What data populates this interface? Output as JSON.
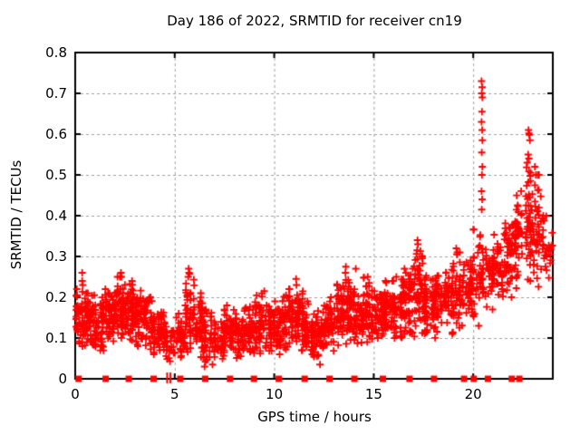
{
  "chart_data": {
    "type": "scatter",
    "title": "Day 186 of 2022, SRMTID for receiver cn19",
    "xlabel": "GPS time / hours",
    "ylabel": "SRMTID / TECUs",
    "xlim": [
      0,
      24
    ],
    "ylim": [
      0,
      0.8
    ],
    "xticks": [
      0,
      5,
      10,
      15,
      20
    ],
    "xtick_labels": [
      "0",
      "5",
      "10",
      "15",
      "20"
    ],
    "yticks": [
      0,
      0.1,
      0.2,
      0.3,
      0.4,
      0.5,
      0.6,
      0.7,
      0.8
    ],
    "ytick_labels": [
      "0",
      "0.1",
      "0.2",
      "0.3",
      "0.4",
      "0.5",
      "0.6",
      "0.7",
      "0.8"
    ],
    "grid": {
      "show": true,
      "style": "dashed",
      "color": "#a0a0a0",
      "x_at": [
        5,
        10,
        15,
        20
      ],
      "y_at": [
        0.1,
        0.2,
        0.3,
        0.4,
        0.5,
        0.6,
        0.7
      ]
    },
    "marker": {
      "glyph": "plus",
      "color": "#ff0000",
      "size": 7,
      "stroke": 1.8
    },
    "axis_color": "#000000",
    "background": "#ffffff",
    "legend": {
      "show": false
    },
    "series": [
      {
        "name": "SRMTID",
        "comment": "dense scatter of + markers; envelope bins are [hour_mid, y_min, y_max, approx_point_count per 0.5h bin] read from the plot",
        "envelope_bins": [
          [
            0.25,
            0.08,
            0.22,
            50
          ],
          [
            0.75,
            0.07,
            0.21,
            55
          ],
          [
            1.25,
            0.06,
            0.2,
            45
          ],
          [
            1.75,
            0.09,
            0.22,
            55
          ],
          [
            2.25,
            0.1,
            0.25,
            60
          ],
          [
            2.75,
            0.09,
            0.24,
            60
          ],
          [
            3.25,
            0.08,
            0.22,
            55
          ],
          [
            3.75,
            0.06,
            0.2,
            45
          ],
          [
            4.25,
            0.05,
            0.17,
            40
          ],
          [
            4.75,
            0.04,
            0.14,
            32
          ],
          [
            5.25,
            0.05,
            0.16,
            38
          ],
          [
            5.75,
            0.06,
            0.26,
            48
          ],
          [
            6.25,
            0.05,
            0.21,
            48
          ],
          [
            6.75,
            0.03,
            0.17,
            42
          ],
          [
            7.25,
            0.04,
            0.15,
            40
          ],
          [
            7.75,
            0.05,
            0.18,
            45
          ],
          [
            8.25,
            0.05,
            0.16,
            45
          ],
          [
            8.75,
            0.06,
            0.18,
            48
          ],
          [
            9.25,
            0.06,
            0.21,
            48
          ],
          [
            9.75,
            0.05,
            0.18,
            45
          ],
          [
            10.25,
            0.06,
            0.2,
            45
          ],
          [
            10.75,
            0.07,
            0.22,
            50
          ],
          [
            11.25,
            0.07,
            0.23,
            50
          ],
          [
            11.75,
            0.06,
            0.19,
            50
          ],
          [
            12.25,
            0.04,
            0.17,
            45
          ],
          [
            12.75,
            0.06,
            0.2,
            50
          ],
          [
            13.25,
            0.08,
            0.24,
            52
          ],
          [
            13.75,
            0.08,
            0.27,
            52
          ],
          [
            14.25,
            0.08,
            0.22,
            50
          ],
          [
            14.75,
            0.09,
            0.25,
            52
          ],
          [
            15.25,
            0.1,
            0.22,
            52
          ],
          [
            15.75,
            0.1,
            0.24,
            52
          ],
          [
            16.25,
            0.1,
            0.25,
            52
          ],
          [
            16.75,
            0.11,
            0.27,
            52
          ],
          [
            17.25,
            0.1,
            0.33,
            55
          ],
          [
            17.75,
            0.09,
            0.27,
            48
          ],
          [
            18.25,
            0.1,
            0.26,
            48
          ],
          [
            18.75,
            0.11,
            0.29,
            48
          ],
          [
            19.25,
            0.12,
            0.31,
            48
          ],
          [
            19.75,
            0.14,
            0.29,
            46
          ],
          [
            20.25,
            0.13,
            0.38,
            40
          ],
          [
            20.75,
            0.17,
            0.34,
            32
          ],
          [
            21.25,
            0.18,
            0.36,
            38
          ],
          [
            21.75,
            0.2,
            0.4,
            46
          ],
          [
            22.25,
            0.22,
            0.48,
            50
          ],
          [
            22.75,
            0.24,
            0.53,
            50
          ],
          [
            23.25,
            0.22,
            0.5,
            42
          ],
          [
            23.75,
            0.22,
            0.4,
            26
          ]
        ],
        "feature_points": [
          [
            0.35,
            0.26
          ],
          [
            0.35,
            0.24
          ],
          [
            0.38,
            0.23
          ],
          [
            2.3,
            0.26
          ],
          [
            2.25,
            0.25
          ],
          [
            5.7,
            0.27
          ],
          [
            5.72,
            0.26
          ],
          [
            5.68,
            0.25
          ],
          [
            6.5,
            0.03
          ],
          [
            6.9,
            0.035
          ],
          [
            9.5,
            0.215
          ],
          [
            11.1,
            0.245
          ],
          [
            11.12,
            0.23
          ],
          [
            12.3,
            0.035
          ],
          [
            13.6,
            0.275
          ],
          [
            13.58,
            0.26
          ],
          [
            14.1,
            0.27
          ],
          [
            14.7,
            0.25
          ],
          [
            17.2,
            0.34
          ],
          [
            17.22,
            0.33
          ],
          [
            17.18,
            0.315
          ],
          [
            19.15,
            0.32
          ],
          [
            19.18,
            0.305
          ],
          [
            20.42,
            0.73
          ],
          [
            20.45,
            0.715
          ],
          [
            20.43,
            0.7
          ],
          [
            20.46,
            0.69
          ],
          [
            20.44,
            0.655
          ],
          [
            20.42,
            0.63
          ],
          [
            20.45,
            0.61
          ],
          [
            20.46,
            0.585
          ],
          [
            20.43,
            0.555
          ],
          [
            20.46,
            0.52
          ],
          [
            20.44,
            0.5
          ],
          [
            20.42,
            0.46
          ],
          [
            20.45,
            0.44
          ],
          [
            20.43,
            0.415
          ],
          [
            22.78,
            0.61
          ],
          [
            22.8,
            0.602
          ],
          [
            22.82,
            0.598
          ],
          [
            22.85,
            0.585
          ],
          [
            22.76,
            0.55
          ],
          [
            22.8,
            0.54
          ],
          [
            23.1,
            0.52
          ],
          [
            23.15,
            0.5
          ]
        ]
      }
    ],
    "zero_square_markers": {
      "style": "filled-square",
      "color": "#ff0000",
      "size": 7,
      "y": 0,
      "x": [
        0.17,
        1.53,
        2.69,
        3.94,
        5.28,
        6.53,
        7.78,
        8.98,
        10.23,
        11.53,
        12.78,
        14.03,
        15.46,
        16.8,
        18.03,
        19.54,
        20.03,
        20.74,
        21.94,
        22.32
      ]
    },
    "zero_bar_markers": {
      "style": "thin-vertical-bar",
      "color": "#ff0000",
      "y": 0,
      "x": [
        4.62,
        4.78
      ]
    }
  }
}
